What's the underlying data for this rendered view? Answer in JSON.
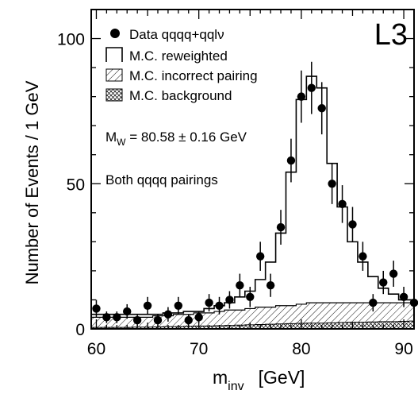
{
  "chart_data": {
    "type": "histogram",
    "experiment_label": "L3",
    "xlabel_main": "m",
    "xlabel_sub": "inv",
    "xlabel_unit": "[GeV]",
    "ylabel": "Number of Events / 1 GeV",
    "xlim": [
      59.5,
      91
    ],
    "ylim": [
      0,
      110
    ],
    "x_ticks": [
      60,
      70,
      80,
      90
    ],
    "y_ticks": [
      0,
      50,
      100
    ],
    "legend": [
      {
        "label": "Data qqqq+qqlν",
        "marker": "filled-circle"
      },
      {
        "label": "M.C. reweighted",
        "marker": "open-histogram"
      },
      {
        "label": "M.C. incorrect pairing",
        "marker": "hatched"
      },
      {
        "label": "M.C. background",
        "marker": "cross-hatched"
      }
    ],
    "annotation_mass": {
      "prefix": "M",
      "sub": "W",
      "value": " = 80.58 ± 0.16 GeV"
    },
    "annotation_text": "Both qqqq pairings",
    "data_points": [
      {
        "x": 60,
        "y": 7,
        "err": 3
      },
      {
        "x": 61,
        "y": 4,
        "err": 2
      },
      {
        "x": 62,
        "y": 4,
        "err": 2
      },
      {
        "x": 63,
        "y": 6,
        "err": 2.5
      },
      {
        "x": 64,
        "y": 3,
        "err": 2
      },
      {
        "x": 65,
        "y": 8,
        "err": 3
      },
      {
        "x": 66,
        "y": 3,
        "err": 2
      },
      {
        "x": 67,
        "y": 5,
        "err": 2.5
      },
      {
        "x": 68,
        "y": 8,
        "err": 3
      },
      {
        "x": 69,
        "y": 3,
        "err": 2
      },
      {
        "x": 70,
        "y": 4,
        "err": 2
      },
      {
        "x": 71,
        "y": 9,
        "err": 3
      },
      {
        "x": 72,
        "y": 8,
        "err": 3
      },
      {
        "x": 73,
        "y": 10,
        "err": 3
      },
      {
        "x": 74,
        "y": 15,
        "err": 4
      },
      {
        "x": 75,
        "y": 11,
        "err": 3.5
      },
      {
        "x": 76,
        "y": 25,
        "err": 5
      },
      {
        "x": 77,
        "y": 15,
        "err": 4
      },
      {
        "x": 78,
        "y": 35,
        "err": 6
      },
      {
        "x": 79,
        "y": 58,
        "err": 7.5
      },
      {
        "x": 80,
        "y": 80,
        "err": 9
      },
      {
        "x": 81,
        "y": 83,
        "err": 9
      },
      {
        "x": 82,
        "y": 76,
        "err": 9
      },
      {
        "x": 83,
        "y": 50,
        "err": 7
      },
      {
        "x": 84,
        "y": 43,
        "err": 6.5
      },
      {
        "x": 85,
        "y": 36,
        "err": 6
      },
      {
        "x": 86,
        "y": 25,
        "err": 5
      },
      {
        "x": 87,
        "y": 9,
        "err": 3
      },
      {
        "x": 88,
        "y": 16,
        "err": 4
      },
      {
        "x": 89,
        "y": 19,
        "err": 4.5
      },
      {
        "x": 90,
        "y": 11,
        "err": 3.5
      },
      {
        "x": 91,
        "y": 9,
        "err": 3
      }
    ],
    "mc_reweighted": {
      "bin_edges": [
        59.5,
        60.5,
        61.5,
        62.5,
        63.5,
        64.5,
        65.5,
        66.5,
        67.5,
        68.5,
        69.5,
        70.5,
        71.5,
        72.5,
        73.5,
        74.5,
        75.5,
        76.5,
        77.5,
        78.5,
        79.5,
        80.5,
        81.5,
        82.5,
        83.5,
        84.5,
        85.5,
        86.5,
        87.5,
        88.5,
        89.5,
        90.5,
        91
      ],
      "values": [
        5,
        5,
        5,
        5,
        5,
        5,
        5,
        5.5,
        5.5,
        6,
        6,
        7,
        8,
        9,
        11,
        13,
        17,
        23,
        33,
        54,
        79,
        87,
        83,
        57,
        42,
        30,
        23,
        18,
        14,
        12,
        10,
        10
      ]
    },
    "mc_incorrect_pairing": {
      "bin_edges": [
        59.5,
        60.5,
        61.5,
        62.5,
        63.5,
        64.5,
        65.5,
        66.5,
        67.5,
        68.5,
        69.5,
        70.5,
        71.5,
        72.5,
        73.5,
        74.5,
        75.5,
        76.5,
        77.5,
        78.5,
        79.5,
        80.5,
        81.5,
        82.5,
        83.5,
        84.5,
        85.5,
        86.5,
        87.5,
        88.5,
        89.5,
        90.5,
        91
      ],
      "values": [
        4,
        4,
        4,
        4,
        4,
        4,
        4.5,
        4.5,
        5,
        5,
        5.5,
        5.5,
        6,
        6.5,
        6.5,
        7,
        7.5,
        7.5,
        8,
        8,
        8.5,
        9,
        9,
        9,
        9,
        9,
        9,
        9,
        9,
        9,
        9,
        9
      ]
    },
    "mc_background": {
      "bin_edges": [
        59.5,
        60.5,
        61.5,
        62.5,
        63.5,
        64.5,
        65.5,
        66.5,
        67.5,
        68.5,
        69.5,
        70.5,
        71.5,
        72.5,
        73.5,
        74.5,
        75.5,
        76.5,
        77.5,
        78.5,
        79.5,
        80.5,
        81.5,
        82.5,
        83.5,
        84.5,
        85.5,
        86.5,
        87.5,
        88.5,
        89.5,
        90.5,
        91
      ],
      "values": [
        0.5,
        0.5,
        0.5,
        0.5,
        0.6,
        0.6,
        0.7,
        0.8,
        0.8,
        0.9,
        1,
        1,
        1.1,
        1.2,
        1.3,
        1.4,
        1.5,
        1.6,
        1.7,
        1.8,
        1.9,
        2,
        2,
        2.1,
        2.2,
        2.3,
        2.3,
        2.4,
        2.5,
        2.5,
        2.6,
        2.7
      ]
    }
  }
}
